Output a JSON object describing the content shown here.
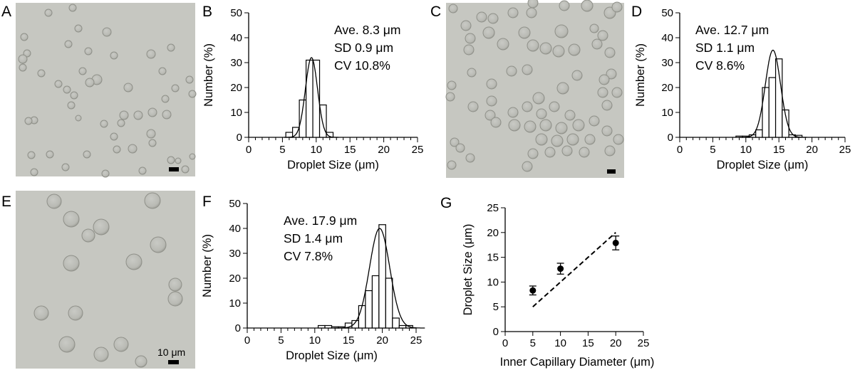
{
  "panel_letters": [
    "A",
    "B",
    "C",
    "D",
    "E",
    "F",
    "G"
  ],
  "micrographs": [
    {
      "panel": "A",
      "scale_bar_label": ""
    },
    {
      "panel": "C",
      "scale_bar_label": ""
    },
    {
      "panel": "E",
      "scale_bar_label": "10 μm"
    }
  ],
  "colors": {
    "micrograph_bg": "#c6c7c1",
    "droplet_fill": "#b8b9b4",
    "droplet_edge": "#8f9089",
    "ink": "#000000"
  },
  "chart_data": [
    {
      "panel": "B",
      "type": "bar",
      "xlabel": "Droplet Size (μm)",
      "ylabel": "Number (%)",
      "xlim": [
        0,
        25
      ],
      "ylim": [
        0,
        50
      ],
      "xticks": [
        0,
        5,
        10,
        15,
        20,
        25
      ],
      "yticks": [
        0,
        10,
        20,
        30,
        40,
        50
      ],
      "bin_width": 1,
      "bins": [
        {
          "x": 6,
          "y": 2
        },
        {
          "x": 7,
          "y": 4
        },
        {
          "x": 8,
          "y": 15
        },
        {
          "x": 9,
          "y": 31
        },
        {
          "x": 10,
          "y": 31
        },
        {
          "x": 11,
          "y": 13
        },
        {
          "x": 12,
          "y": 2
        }
      ],
      "fit_curve": {
        "type": "gaussian",
        "mean": 9.3,
        "sd": 0.9,
        "peak": 32
      },
      "stats": [
        "Ave. 8.3 μm",
        "SD 0.9 μm",
        "CV 10.8%"
      ]
    },
    {
      "panel": "D",
      "type": "bar",
      "xlabel": "Droplet Size (μm)",
      "ylabel": "Number (%)",
      "xlim": [
        0,
        25
      ],
      "ylim": [
        0,
        50
      ],
      "xticks": [
        0,
        5,
        10,
        15,
        20,
        25
      ],
      "yticks": [
        0,
        10,
        20,
        30,
        40,
        50
      ],
      "bin_width": 1,
      "bins": [
        {
          "x": 9,
          "y": 0.5
        },
        {
          "x": 10,
          "y": 0.5
        },
        {
          "x": 11,
          "y": 1
        },
        {
          "x": 12,
          "y": 3
        },
        {
          "x": 13,
          "y": 20
        },
        {
          "x": 14,
          "y": 24
        },
        {
          "x": 15,
          "y": 31.5
        },
        {
          "x": 16,
          "y": 11
        },
        {
          "x": 17,
          "y": 1
        },
        {
          "x": 18,
          "y": 0.8
        }
      ],
      "fit_curve": {
        "type": "gaussian",
        "mean": 14.1,
        "sd": 1.15,
        "peak": 35
      },
      "stats": [
        "Ave. 12.7 μm",
        "SD 1.1 μm",
        "CV 8.6%"
      ]
    },
    {
      "panel": "F",
      "type": "bar",
      "xlabel": "Droplet Size (μm)",
      "ylabel": "Number (%)",
      "xlim": [
        0,
        25
      ],
      "ylim": [
        0,
        50
      ],
      "xticks": [
        0,
        5,
        10,
        15,
        20,
        25
      ],
      "yticks": [
        0,
        10,
        20,
        30,
        40,
        50
      ],
      "bin_width": 1,
      "bins": [
        {
          "x": 11,
          "y": 1
        },
        {
          "x": 12,
          "y": 1
        },
        {
          "x": 13,
          "y": 0.5
        },
        {
          "x": 14,
          "y": 0.5
        },
        {
          "x": 15,
          "y": 2
        },
        {
          "x": 16,
          "y": 3
        },
        {
          "x": 17,
          "y": 9
        },
        {
          "x": 18,
          "y": 15
        },
        {
          "x": 19,
          "y": 21
        },
        {
          "x": 20,
          "y": 41.5
        },
        {
          "x": 21,
          "y": 20
        },
        {
          "x": 22,
          "y": 4
        },
        {
          "x": 23,
          "y": 1
        },
        {
          "x": 24,
          "y": 1
        }
      ],
      "fit_curve": {
        "type": "gaussian",
        "mean": 19.6,
        "sd": 1.5,
        "peak": 40
      },
      "stats": [
        "Ave. 17.9 μm",
        "SD 1.4 μm",
        "CV 7.8%"
      ]
    },
    {
      "panel": "G",
      "type": "scatter",
      "xlabel": "Inner Capillary Diameter (μm)",
      "ylabel": "Droplet Size (μm)",
      "xlim": [
        0,
        25
      ],
      "ylim": [
        0,
        25
      ],
      "xticks": [
        0,
        5,
        10,
        15,
        20,
        25
      ],
      "yticks": [
        0,
        5,
        10,
        15,
        20,
        25
      ],
      "points": [
        {
          "x": 5,
          "y": 8.3,
          "err": 0.9
        },
        {
          "x": 10,
          "y": 12.7,
          "err": 1.1
        },
        {
          "x": 20,
          "y": 17.9,
          "err": 1.4
        }
      ],
      "reference_line": {
        "style": "dashed",
        "from": [
          5,
          5
        ],
        "to": [
          20,
          20
        ]
      }
    }
  ]
}
